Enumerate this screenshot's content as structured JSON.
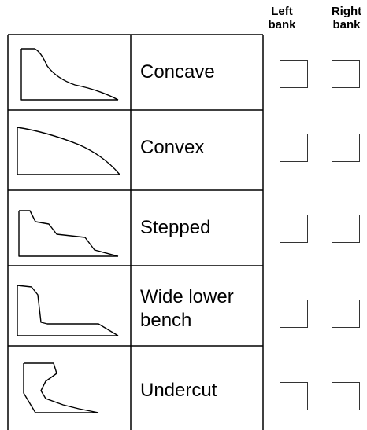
{
  "columns": [
    "Left bank",
    "Right bank"
  ],
  "rows": [
    {
      "label": "Concave"
    },
    {
      "label": "Convex"
    },
    {
      "label": "Stepped"
    },
    {
      "label": "Wide lower bench"
    },
    {
      "label": "Undercut"
    }
  ]
}
